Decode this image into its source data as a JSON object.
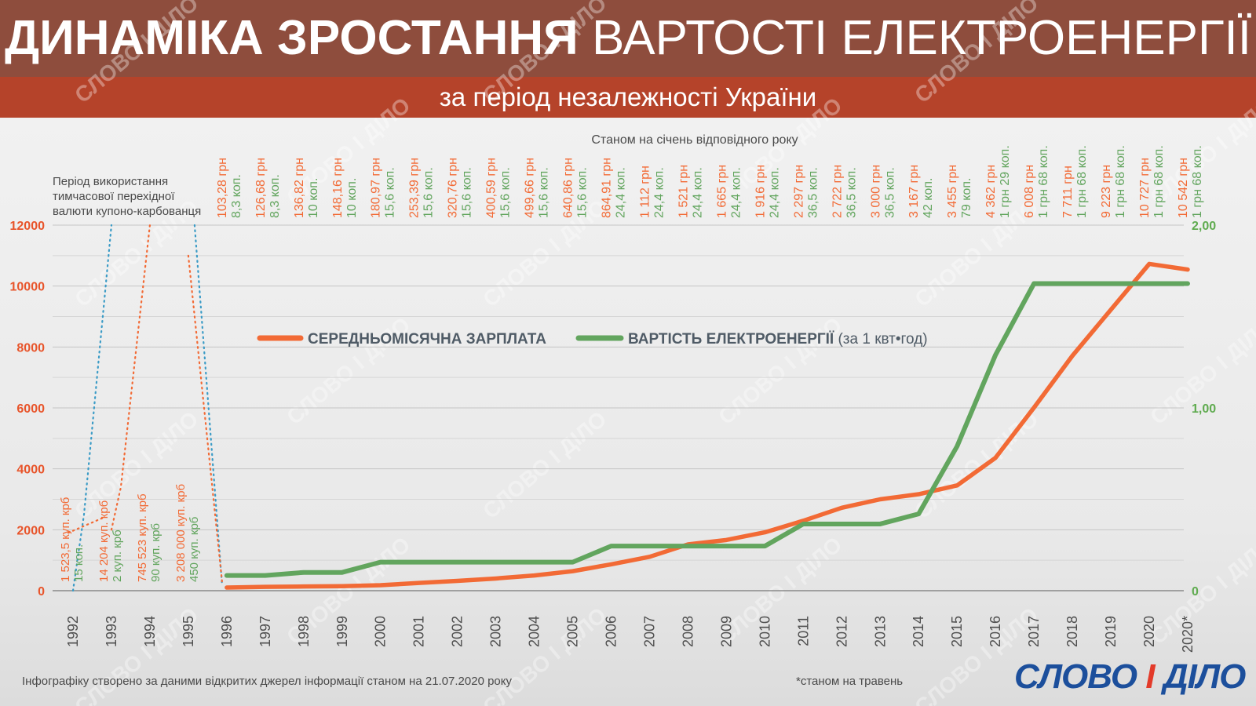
{
  "header": {
    "title_bold": "ДИНАМІКА ЗРОСТАННЯ",
    "title_light": "ВАРТОСТІ ЕЛЕКТРОЕНЕРГІЇ",
    "subtitle": "за період незалежності України"
  },
  "note_top": "Станом на січень відповідного року",
  "coupon_note": [
    "Період використання",
    "тимчасової перехідної",
    "валюти купоно-карбованця"
  ],
  "footer": {
    "source": "Інфографіку створено за даними відкритих джерел інформації станом на 21.07.2020 року",
    "asterisk": "*станом на травень",
    "brand_a": "СЛОВО",
    "brand_i": "І",
    "brand_b": "ДІЛО"
  },
  "watermark": "СЛОВО І ДІЛО",
  "colors": {
    "salary": "#f26a35",
    "electricity": "#62a55e",
    "coupon_price": "#3a9bc6",
    "left_axis": "#e8542a",
    "right_axis": "#5fab4f"
  },
  "chart_data": {
    "type": "line",
    "title": "",
    "categories": [
      "1992",
      "1993",
      "1994",
      "1995",
      "1996",
      "1997",
      "1998",
      "1999",
      "2000",
      "2001",
      "2002",
      "2003",
      "2004",
      "2005",
      "2006",
      "2007",
      "2008",
      "2009",
      "2010",
      "2011",
      "2012",
      "2013",
      "2014",
      "2015",
      "2016",
      "2017",
      "2018",
      "2019",
      "2020",
      "2020*"
    ],
    "y_left": {
      "ticks": [
        "0",
        "2000",
        "4000",
        "6000",
        "8000",
        "10000",
        "12000"
      ],
      "lim": [
        0,
        12000
      ]
    },
    "y_right": {
      "ticks": [
        "0",
        "1,00",
        "2,00"
      ],
      "lim": [
        0,
        2
      ]
    },
    "legend": [
      {
        "name": "СЕРЕДНЬОМІСЯЧНА ЗАРПЛАТА",
        "suffix": ""
      },
      {
        "name": "ВАРТІСТЬ ЕЛЕКТРОЕНЕРГІЇ",
        "suffix": " (за 1 квт•год)"
      }
    ],
    "series": [
      {
        "name": "СЕРЕДНЬОМІСЯЧНА ЗАРПЛАТА",
        "axis": "left",
        "x": [
          "1996",
          "1997",
          "1998",
          "1999",
          "2000",
          "2001",
          "2002",
          "2003",
          "2004",
          "2005",
          "2006",
          "2007",
          "2008",
          "2009",
          "2010",
          "2011",
          "2012",
          "2013",
          "2014",
          "2015",
          "2016",
          "2017",
          "2018",
          "2019",
          "2020",
          "2020*"
        ],
        "values": [
          103.28,
          126.68,
          136.82,
          148.16,
          180.97,
          253.39,
          320.76,
          400.59,
          499.66,
          640.86,
          864.91,
          1112,
          1521,
          1665,
          1916,
          2297,
          2722,
          3000,
          3167,
          3455,
          4362,
          6008,
          7711,
          9223,
          10727,
          10542
        ]
      },
      {
        "name": "ВАРТІСТЬ ЕЛЕКТРОЕНЕРГІЇ",
        "axis": "right",
        "x": [
          "1996",
          "1997",
          "1998",
          "1999",
          "2000",
          "2001",
          "2002",
          "2003",
          "2004",
          "2005",
          "2006",
          "2007",
          "2008",
          "2009",
          "2010",
          "2011",
          "2012",
          "2013",
          "2014",
          "2015",
          "2016",
          "2017",
          "2018",
          "2019",
          "2020",
          "2020*"
        ],
        "values": [
          0.083,
          0.083,
          0.1,
          0.1,
          0.156,
          0.156,
          0.156,
          0.156,
          0.156,
          0.156,
          0.244,
          0.244,
          0.244,
          0.244,
          0.244,
          0.365,
          0.365,
          0.365,
          0.42,
          0.79,
          1.29,
          1.68,
          1.68,
          1.68,
          1.68,
          1.68
        ]
      }
    ],
    "top_labels": [
      {
        "x": "1996",
        "salary": "103,28 грн",
        "price": "8,3 коп."
      },
      {
        "x": "1997",
        "salary": "126,68 грн",
        "price": "8,3 коп."
      },
      {
        "x": "1998",
        "salary": "136,82 грн",
        "price": "10 коп."
      },
      {
        "x": "1999",
        "salary": "148,16 грн",
        "price": "10 коп."
      },
      {
        "x": "2000",
        "salary": "180,97 грн",
        "price": "15,6 коп."
      },
      {
        "x": "2001",
        "salary": "253,39 грн",
        "price": "15,6 коп."
      },
      {
        "x": "2002",
        "salary": "320,76 грн",
        "price": "15,6 коп."
      },
      {
        "x": "2003",
        "salary": "400,59 грн",
        "price": "15,6 коп."
      },
      {
        "x": "2004",
        "salary": "499,66 грн",
        "price": "15,6 коп."
      },
      {
        "x": "2005",
        "salary": "640,86 грн",
        "price": "15,6 коп."
      },
      {
        "x": "2006",
        "salary": "864,91 грн",
        "price": "24,4 коп."
      },
      {
        "x": "2007",
        "salary": "1 112 грн",
        "price": "24,4 коп."
      },
      {
        "x": "2008",
        "salary": "1 521 грн",
        "price": "24,4 коп."
      },
      {
        "x": "2009",
        "salary": "1 665 грн",
        "price": "24,4 коп."
      },
      {
        "x": "2010",
        "salary": "1 916 грн",
        "price": "24,4 коп."
      },
      {
        "x": "2011",
        "salary": "2 297 грн",
        "price": "36,5 коп."
      },
      {
        "x": "2012",
        "salary": "2 722 грн",
        "price": "36,5 коп."
      },
      {
        "x": "2013",
        "salary": "3 000 грн",
        "price": "36,5 коп."
      },
      {
        "x": "2014",
        "salary": "3 167 грн",
        "price": "42 коп."
      },
      {
        "x": "2015",
        "salary": "3 455 грн",
        "price": "79 коп."
      },
      {
        "x": "2016",
        "salary": "4 362 грн",
        "price": "1 грн 29 коп."
      },
      {
        "x": "2017",
        "salary": "6 008 грн",
        "price": "1 грн 68 коп."
      },
      {
        "x": "2018",
        "salary": "7 711 грн",
        "price": "1 грн 68 коп."
      },
      {
        "x": "2019",
        "salary": "9 223 грн",
        "price": "1 грн 68 коп."
      },
      {
        "x": "2020",
        "salary": "10 727 грн",
        "price": "1 грн 68 коп."
      },
      {
        "x": "2020*",
        "salary": "10 542 грн",
        "price": "1 грн 68 коп."
      }
    ],
    "coupon_labels": [
      {
        "x": "1992",
        "salary": "1 523,5 куп. крб",
        "price": "15 коп."
      },
      {
        "x": "1993",
        "salary": "14 204 куп. крб",
        "price": "2 куп. крб"
      },
      {
        "x": "1994",
        "salary": "745 523 куп. крб",
        "price": "90 куп. крб"
      },
      {
        "x": "1995",
        "salary": "3 208 000 куп. крб",
        "price": "450 куп. крб"
      }
    ]
  }
}
